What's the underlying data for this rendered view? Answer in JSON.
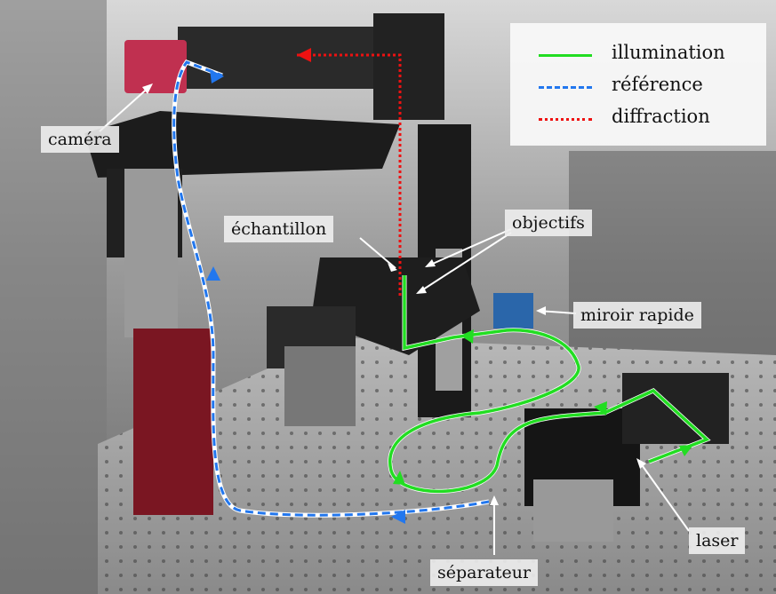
{
  "labels": {
    "camera": "caméra",
    "sample": "échantillon",
    "objectives": "objectifs",
    "fast_mirror": "miroir rapide",
    "laser": "laser",
    "splitter": "séparateur"
  },
  "legend": {
    "illumination": "illumination",
    "reference": "référence",
    "diffraction": "diffraction"
  },
  "colors": {
    "illumination": "#22dd22",
    "reference": "#2277ee",
    "diffraction": "#ee1111"
  }
}
